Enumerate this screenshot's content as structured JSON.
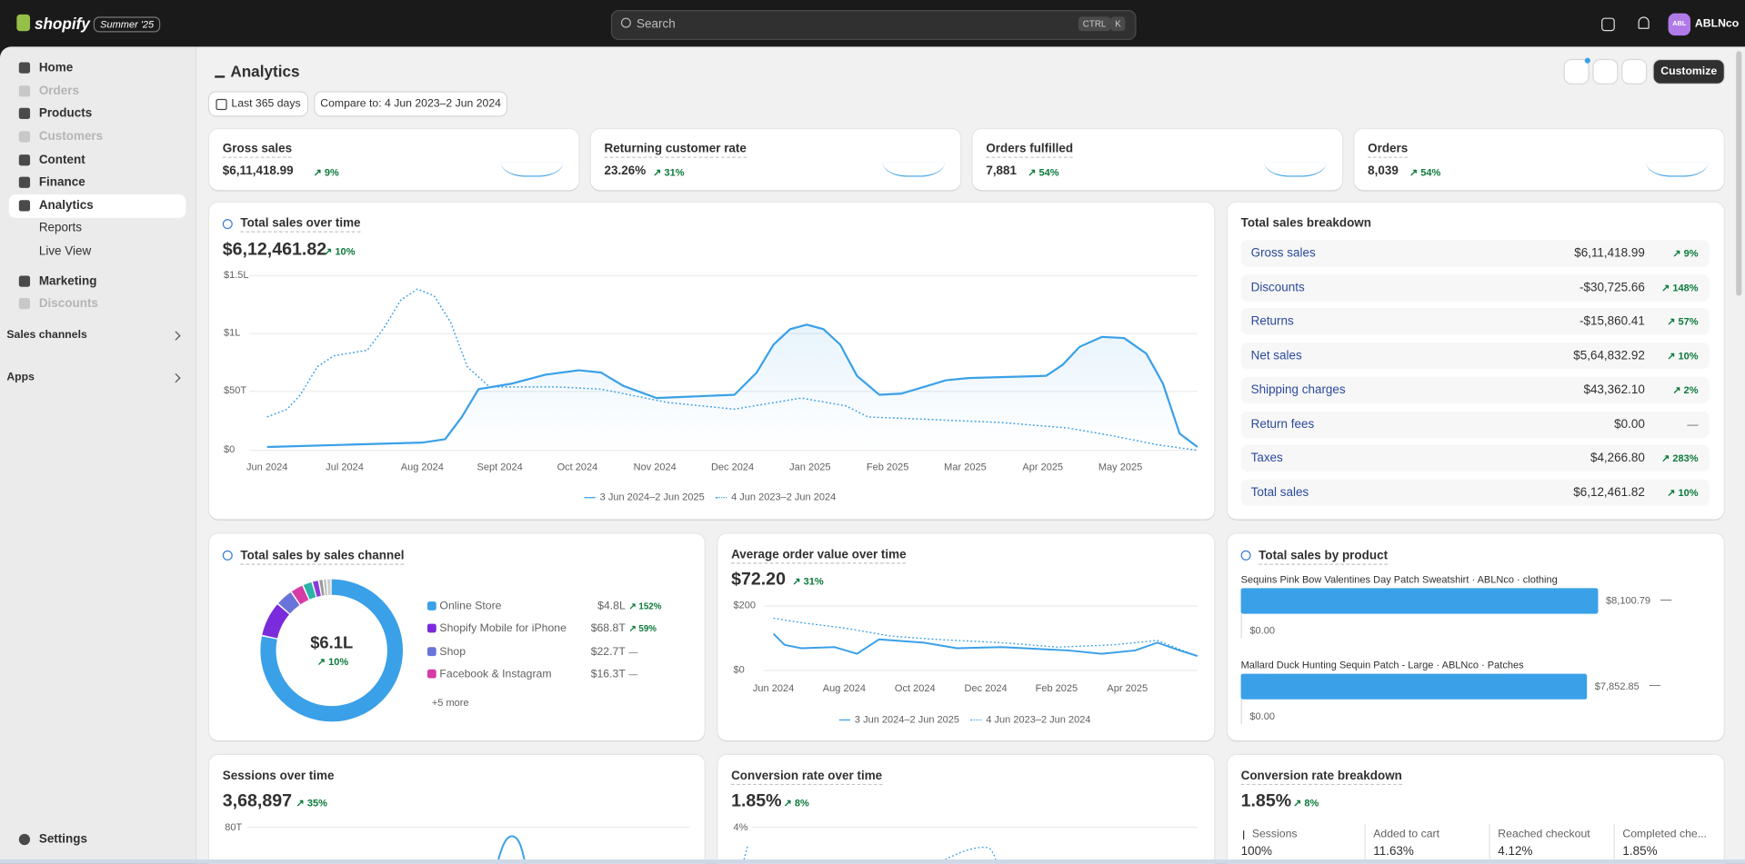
{
  "topbar": {
    "brand": "shopify",
    "badge": "Summer '25",
    "search": "Search",
    "shortcut": [
      "CTRL",
      "K"
    ],
    "avatar": "ABL",
    "store": "ABLNco"
  },
  "sidebar": {
    "items": [
      "Home",
      "Orders",
      "Products",
      "Customers",
      "Content",
      "Finance",
      "Analytics"
    ],
    "subitems": [
      "Reports",
      "Live View"
    ],
    "items2": [
      "Marketing",
      "Discounts"
    ],
    "sections": [
      "Sales channels",
      "Apps"
    ],
    "settings": "Settings"
  },
  "header": {
    "title": "Analytics",
    "filters": [
      "Last 365 days",
      "Compare to: 4 Jun 2023–2 Jun 2024"
    ],
    "action": "Customize"
  },
  "kpis": [
    {
      "label": "Gross sales",
      "value": "$6,11,418.99",
      "change": "9%"
    },
    {
      "label": "Returning customer rate",
      "value": "23.26%",
      "change": "31%"
    },
    {
      "label": "Orders fulfilled",
      "value": "7,881",
      "change": "54%"
    },
    {
      "label": "Orders",
      "value": "8,039",
      "change": "54%"
    }
  ],
  "total_sales": {
    "title": "Total sales over time",
    "value": "$6,12,461.82",
    "change": "10%",
    "yticks": [
      "$1.5L",
      "$1L",
      "$50T",
      "$0"
    ],
    "xticks": [
      "Jun 2024",
      "Jul 2024",
      "Aug 2024",
      "Sept 2024",
      "Oct 2024",
      "Nov 2024",
      "Dec 2024",
      "Jan 2025",
      "Feb 2025",
      "Mar 2025",
      "Apr 2025",
      "May 2025"
    ],
    "legend": [
      "3 Jun 2024–2 Jun 2025",
      "4 Jun 2023–2 Jun 2024"
    ]
  },
  "breakdown": {
    "title": "Total sales breakdown",
    "rows": [
      {
        "label": "Gross sales",
        "value": "$6,11,418.99",
        "change": "9%"
      },
      {
        "label": "Discounts",
        "value": "-$30,725.66",
        "change": "148%"
      },
      {
        "label": "Returns",
        "value": "-$15,860.41",
        "change": "57%"
      },
      {
        "label": "Net sales",
        "value": "$5,64,832.92",
        "change": "10%"
      },
      {
        "label": "Shipping charges",
        "value": "$43,362.10",
        "change": "2%"
      },
      {
        "label": "Return fees",
        "value": "$0.00",
        "change": "—"
      },
      {
        "label": "Taxes",
        "value": "$4,266.80",
        "change": "283%"
      },
      {
        "label": "Total sales",
        "value": "$6,12,461.82",
        "change": "10%"
      }
    ]
  },
  "channels": {
    "title": "Total sales by sales channel",
    "center": "$6.1L",
    "change": "10%",
    "rows": [
      {
        "name": "Online Store",
        "value": "$4.8L",
        "change": "152%"
      },
      {
        "name": "Shopify Mobile for iPhone",
        "value": "$68.8T",
        "change": "59%"
      },
      {
        "name": "Shop",
        "value": "$22.7T",
        "change": "—"
      },
      {
        "name": "Facebook & Instagram",
        "value": "$16.3T",
        "change": "—"
      }
    ],
    "more": "+5 more"
  },
  "aov": {
    "title": "Average order value over time",
    "value": "$72.20",
    "change": "31%",
    "yticks": [
      "$200",
      "$0"
    ],
    "xticks": [
      "Jun 2024",
      "Aug 2024",
      "Oct 2024",
      "Dec 2024",
      "Feb 2025",
      "Apr 2025"
    ],
    "legend": [
      "3 Jun 2024–2 Jun 2025",
      "4 Jun 2023–2 Jun 2024"
    ]
  },
  "products": {
    "title": "Total sales by product",
    "rows": [
      {
        "name": "Sequins Pink Bow Valentines Day Patch Sweatshirt · ABLNco · clothing",
        "value": "$8,100.79",
        "change": "—",
        "axis": "$0.00"
      },
      {
        "name": "Mallard Duck Hunting Sequin Patch - Large · ABLNco · Patches",
        "value": "$7,852.85",
        "change": "—",
        "axis": "$0.00"
      }
    ]
  },
  "sessions": {
    "title": "Sessions over time",
    "value": "3,68,897",
    "change": "35%",
    "ytick": "80T"
  },
  "conversion": {
    "title": "Conversion rate over time",
    "value": "1.85%",
    "change": "8%",
    "ytick": "4%"
  },
  "funnel": {
    "title": "Conversion rate breakdown",
    "value": "1.85%",
    "change": "8%",
    "steps": [
      {
        "label": "Sessions",
        "value": "100%"
      },
      {
        "label": "Added to cart",
        "value": "11.63%"
      },
      {
        "label": "Reached checkout",
        "value": "4.12%"
      },
      {
        "label": "Completed che...",
        "value": "1.85%"
      }
    ]
  }
}
